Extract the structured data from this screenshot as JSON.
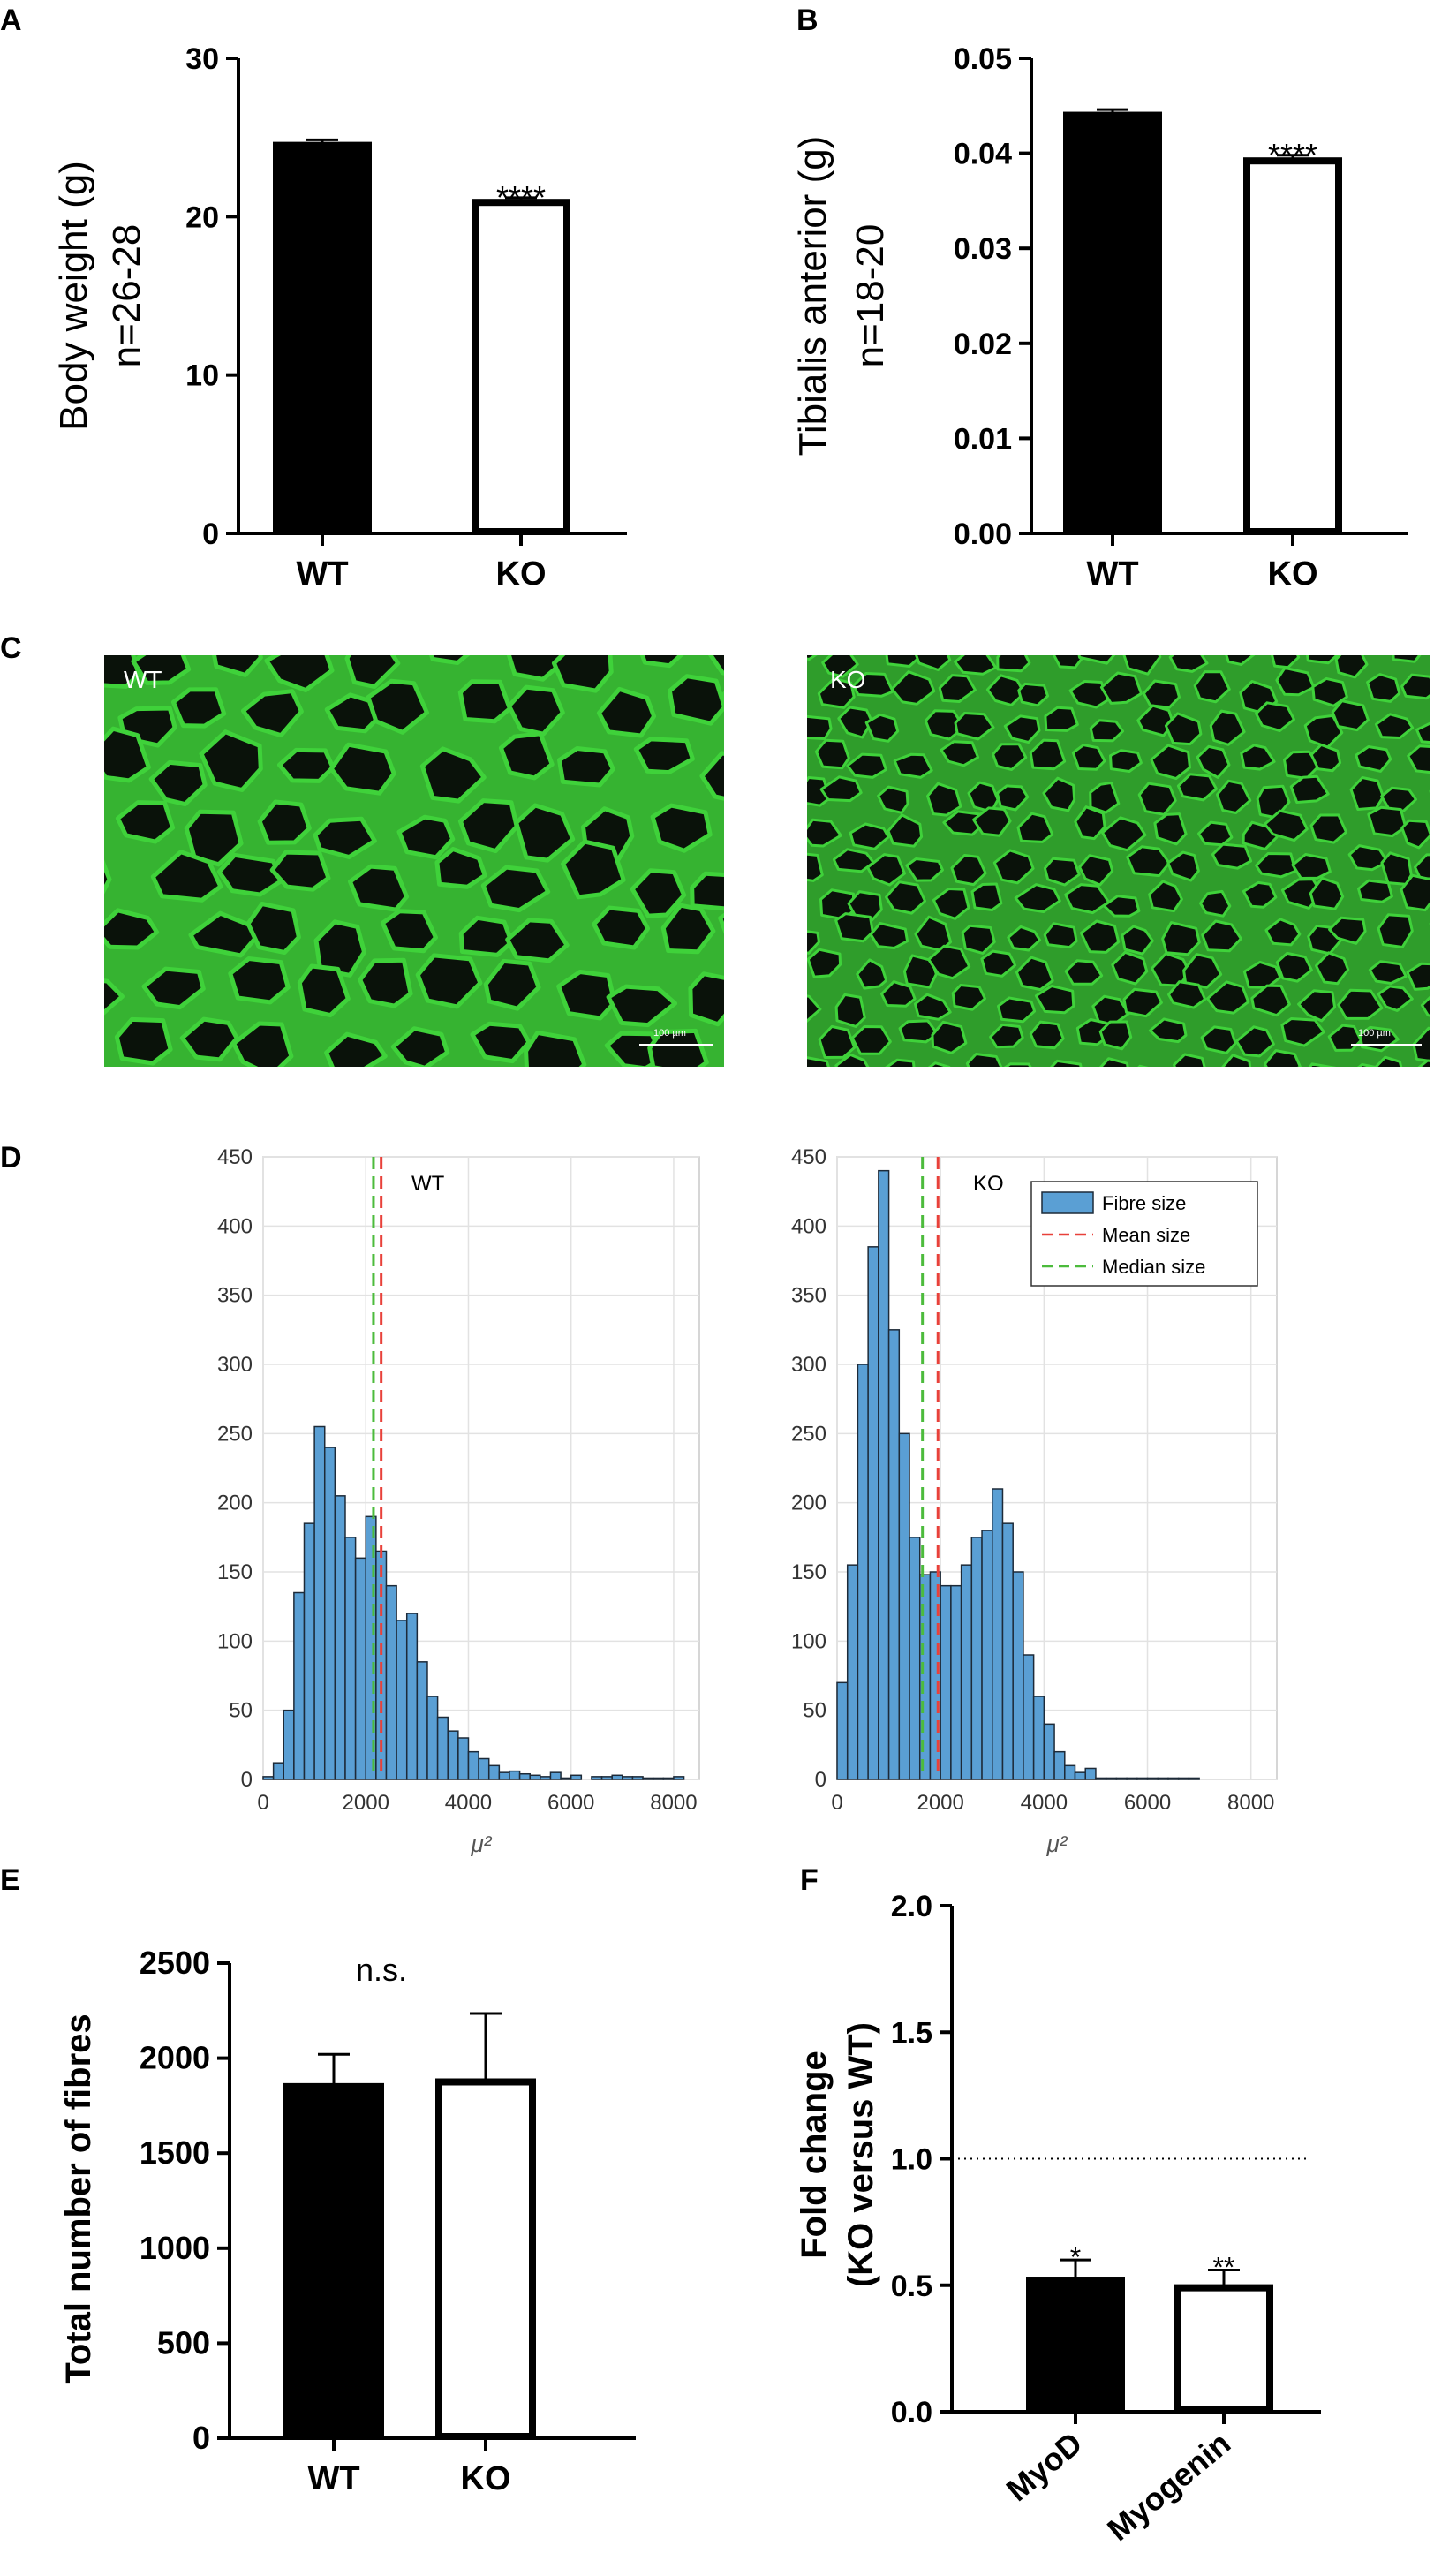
{
  "panels": {
    "A": "A",
    "B": "B",
    "C": "C",
    "D": "D",
    "E": "E",
    "F": "F"
  },
  "micrographs": [
    {
      "label": "WT",
      "scale_bar": "100 µm"
    },
    {
      "label": "KO",
      "scale_bar": "100 µm"
    }
  ],
  "colors": {
    "hist_fill": "#5a9fd4",
    "mean_line": "#e8413a",
    "median_line": "#4cbb3c",
    "membrane": "#3fd23a"
  },
  "chart_data": [
    {
      "id": "A",
      "type": "bar",
      "categories": [
        "WT",
        "KO"
      ],
      "values": [
        24.5,
        20.9
      ],
      "errors": [
        0.35,
        0.3
      ],
      "fills": [
        "#000000",
        "#ffffff"
      ],
      "ylabel": [
        "Body weight (g)",
        "n=26-28"
      ],
      "ylim": [
        0,
        30
      ],
      "yticks": [
        "0",
        "10",
        "20",
        "30"
      ],
      "annotations": [
        "",
        "****"
      ]
    },
    {
      "id": "B",
      "type": "bar",
      "categories": [
        "WT",
        "KO"
      ],
      "values": [
        0.044,
        0.0392
      ],
      "errors": [
        0.0006,
        0.0006
      ],
      "fills": [
        "#000000",
        "#ffffff"
      ],
      "ylabel": [
        "Tibialis anterior (g)",
        "n=18-20"
      ],
      "ylim": [
        0,
        0.05
      ],
      "yticks": [
        "0.00",
        "0.01",
        "0.02",
        "0.03",
        "0.04",
        "0.05"
      ],
      "annotations": [
        "",
        "****"
      ]
    },
    {
      "id": "D-WT",
      "type": "histogram",
      "label": "WT",
      "bin_width": 200,
      "bin_start": 0,
      "counts": [
        2,
        12,
        50,
        135,
        185,
        255,
        240,
        205,
        175,
        160,
        190,
        165,
        140,
        115,
        120,
        85,
        60,
        45,
        35,
        30,
        20,
        15,
        10,
        5,
        6,
        4,
        3,
        2,
        5,
        1,
        3,
        0,
        2,
        2,
        3,
        2,
        2,
        1,
        1,
        1,
        2
      ],
      "mean": 2300,
      "median": 2150,
      "xlim": [
        0,
        8500
      ],
      "ylim": [
        0,
        450
      ],
      "xticks": [
        "0",
        "2000",
        "4000",
        "6000",
        "8000"
      ],
      "yticks": [
        "0",
        "50",
        "100",
        "150",
        "200",
        "250",
        "300",
        "350",
        "400",
        "450"
      ],
      "xlabel": "μ²"
    },
    {
      "id": "D-KO",
      "type": "histogram",
      "label": "KO",
      "bin_width": 200,
      "bin_start": 0,
      "counts": [
        70,
        155,
        300,
        385,
        440,
        325,
        250,
        175,
        148,
        150,
        140,
        140,
        155,
        175,
        180,
        210,
        185,
        150,
        90,
        60,
        40,
        20,
        10,
        5,
        8,
        1,
        1,
        1,
        1,
        1,
        1,
        1,
        1,
        1,
        1
      ],
      "legend": [
        "Fibre size",
        "Mean size",
        "Median size"
      ],
      "mean": 1950,
      "median": 1650,
      "xlim": [
        0,
        8500
      ],
      "ylim": [
        0,
        450
      ],
      "xticks": [
        "0",
        "2000",
        "4000",
        "6000",
        "8000"
      ],
      "yticks": [
        "0",
        "50",
        "100",
        "150",
        "200",
        "250",
        "300",
        "350",
        "400",
        "450"
      ],
      "xlabel": "μ²"
    },
    {
      "id": "E",
      "type": "bar",
      "categories": [
        "WT",
        "KO"
      ],
      "values": [
        1850,
        1875
      ],
      "errors": [
        170,
        360
      ],
      "fills": [
        "#000000",
        "#ffffff"
      ],
      "ylabel": [
        "Total number of fibres"
      ],
      "ylim": [
        0,
        2500
      ],
      "yticks": [
        "0",
        "500",
        "1000",
        "1500",
        "2000",
        "2500"
      ],
      "annotations": [
        "",
        ""
      ],
      "title": "n.s."
    },
    {
      "id": "F",
      "type": "bar",
      "categories": [
        "MyoD",
        "Myogenin"
      ],
      "values": [
        0.52,
        0.49
      ],
      "errors": [
        0.08,
        0.07
      ],
      "fills": [
        "#000000",
        "#ffffff"
      ],
      "ylabel": [
        "Fold change",
        "(KO versus WT)"
      ],
      "ylim": [
        0,
        2.0
      ],
      "yticks": [
        "0.0",
        "0.5",
        "1.0",
        "1.5",
        "2.0"
      ],
      "annotations": [
        "*",
        "**"
      ],
      "reference_line": 1.0
    }
  ]
}
